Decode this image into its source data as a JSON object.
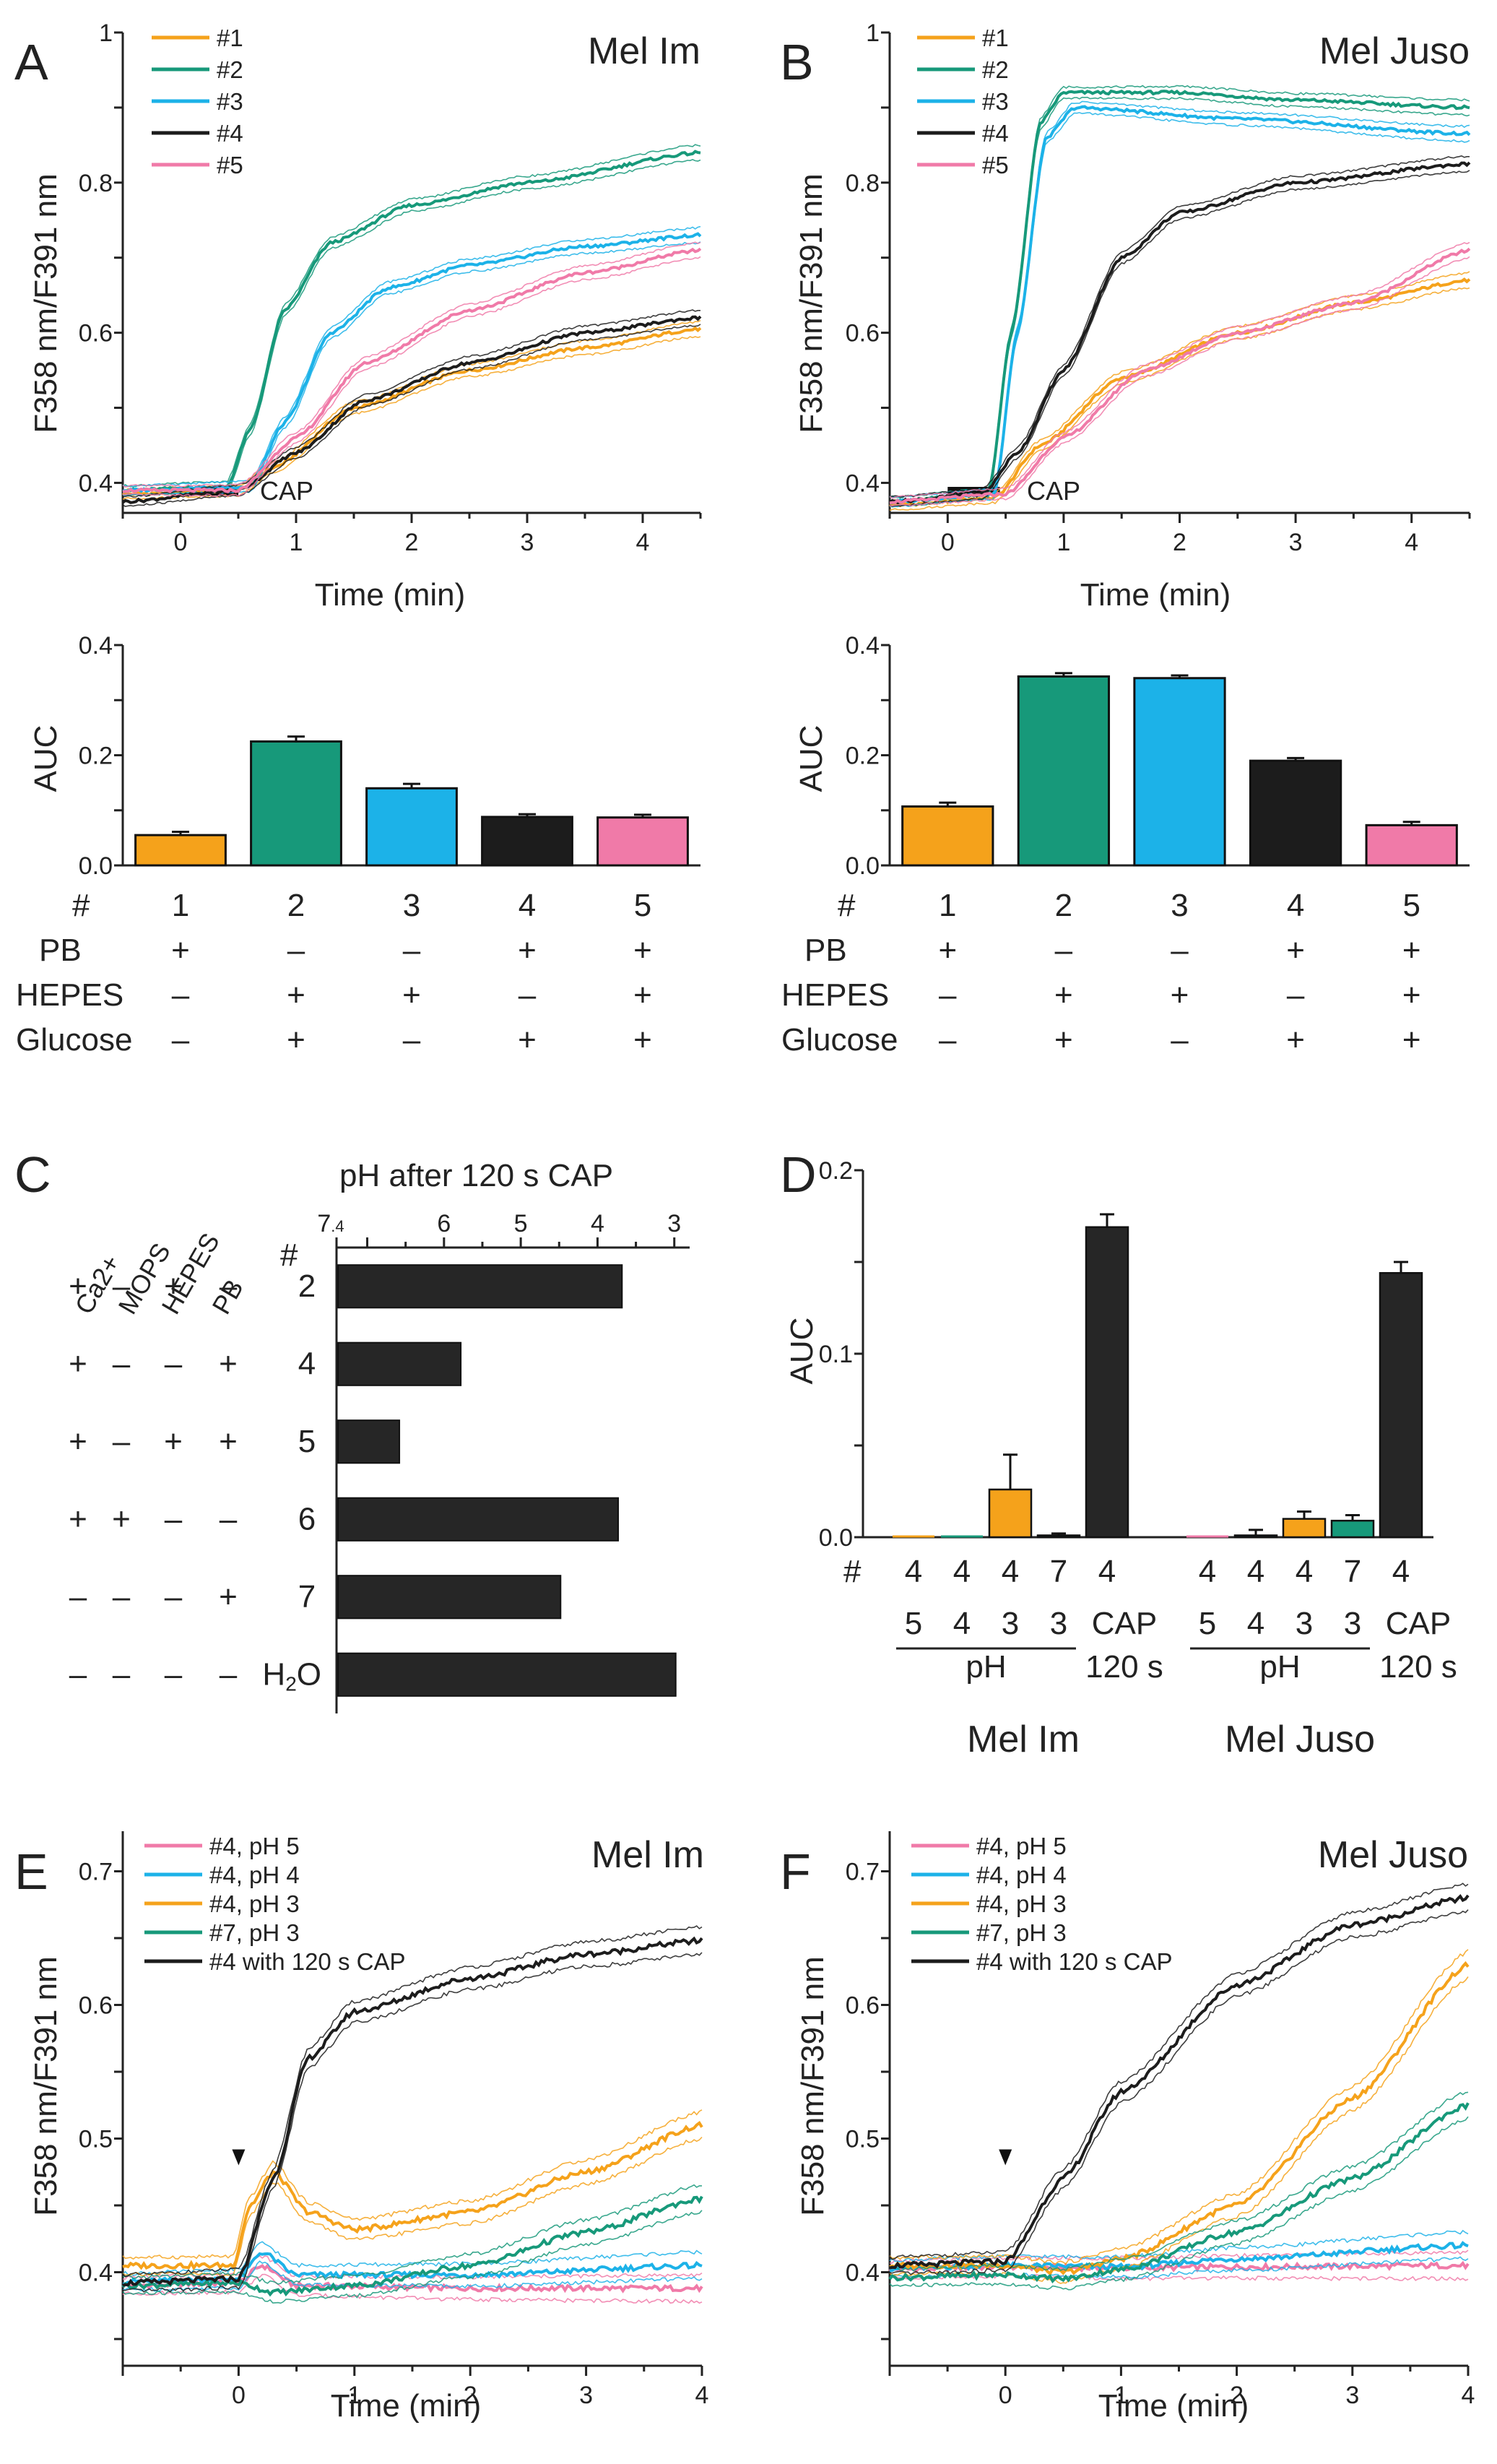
{
  "colors": {
    "c1": "#f5a21b",
    "c2": "#17997a",
    "c3": "#1cb2e8",
    "c4": "#1c1c1c",
    "c5": "#f07aa8",
    "bar_dark": "#262626"
  },
  "panelA": {
    "letter": "A",
    "cell": "Mel Im",
    "ylabel": "F358 nm/F391 nm",
    "xlabel": "Time (min)",
    "stim": "CAP",
    "legend": [
      "#1",
      "#2",
      "#3",
      "#4",
      "#5"
    ]
  },
  "panelB": {
    "letter": "B",
    "cell": "Mel Juso",
    "ylabel": "F358 nm/F391 nm",
    "xlabel": "Time (min)",
    "stim": "CAP",
    "legend": [
      "#1",
      "#2",
      "#3",
      "#4",
      "#5"
    ]
  },
  "auc": {
    "ylabel": "AUC",
    "row_labels": [
      "#",
      "PB",
      "HEPES",
      "Glucose"
    ],
    "columns": [
      {
        "num": "1",
        "pb": "+",
        "hepes": "–",
        "glucose": "–"
      },
      {
        "num": "2",
        "pb": "–",
        "hepes": "+",
        "glucose": "+"
      },
      {
        "num": "3",
        "pb": "–",
        "hepes": "+",
        "glucose": "–"
      },
      {
        "num": "4",
        "pb": "+",
        "hepes": "–",
        "glucose": "+"
      },
      {
        "num": "5",
        "pb": "+",
        "hepes": "+",
        "glucose": "+"
      }
    ]
  },
  "panelC": {
    "letter": "C",
    "title": "pH after 120 s CAP",
    "col_headers": [
      "Ca2+",
      "MOPS",
      "HEPES",
      "PB",
      "#"
    ],
    "rows": [
      {
        "signs": [
          "+",
          "–",
          "+",
          "–"
        ],
        "label": "2"
      },
      {
        "signs": [
          "+",
          "–",
          "–",
          "+"
        ],
        "label": "4"
      },
      {
        "signs": [
          "+",
          "–",
          "+",
          "+"
        ],
        "label": "5"
      },
      {
        "signs": [
          "+",
          "+",
          "–",
          "–"
        ],
        "label": "6"
      },
      {
        "signs": [
          "–",
          "–",
          "–",
          "+"
        ],
        "label": "7"
      },
      {
        "signs": [
          "–",
          "–",
          "–",
          "–"
        ],
        "label": "H2O"
      }
    ]
  },
  "panelD": {
    "letter": "D",
    "ylabel": "AUC",
    "hash": "#",
    "ph_label": "pH",
    "cap_label": "CAP",
    "cap_time": "120 s",
    "groups": [
      "Mel Im",
      "Mel Juso"
    ],
    "cols": [
      {
        "top": "4",
        "bottom": "5"
      },
      {
        "top": "4",
        "bottom": "4"
      },
      {
        "top": "4",
        "bottom": "3"
      },
      {
        "top": "7",
        "bottom": "3"
      },
      {
        "top": "4",
        "bottom": "CAP"
      }
    ]
  },
  "panelE": {
    "letter": "E",
    "cell": "Mel Im",
    "ylabel": "F358 nm/F391 nm",
    "xlabel": "Time (min)",
    "legend": [
      "#4, pH 5",
      "#4, pH 4",
      "#4, pH 3",
      "#7, pH 3",
      "#4 with 120 s CAP"
    ]
  },
  "panelF": {
    "letter": "F",
    "cell": "Mel Juso",
    "ylabel": "F358 nm/F391 nm",
    "xlabel": "Time (min)",
    "legend": [
      "#4, pH 5",
      "#4, pH 4",
      "#4, pH 3",
      "#7, pH 3",
      "#4 with 120 s CAP"
    ]
  },
  "chart_data": [
    {
      "id": "A",
      "type": "line",
      "title": "Mel Im",
      "xlabel": "Time (min)",
      "ylabel": "F358 nm/F391 nm",
      "xlim": [
        -0.5,
        4.5
      ],
      "ylim": [
        0.36,
        1.0
      ],
      "xticks": [
        0,
        1,
        2,
        3,
        4
      ],
      "yticks": [
        0.4,
        0.6,
        0.8,
        1
      ],
      "stimulus": {
        "label": "CAP",
        "x": [
          0,
          0.5
        ]
      },
      "series": [
        {
          "name": "#1",
          "color": "#f5a21b",
          "points": [
            [
              -0.5,
              0.385
            ],
            [
              0.5,
              0.39
            ],
            [
              0.8,
              0.42
            ],
            [
              1.5,
              0.5
            ],
            [
              2.5,
              0.55
            ],
            [
              3.5,
              0.58
            ],
            [
              4.5,
              0.605
            ]
          ]
        },
        {
          "name": "#2",
          "color": "#17997a",
          "points": [
            [
              -0.5,
              0.39
            ],
            [
              0.4,
              0.395
            ],
            [
              0.6,
              0.47
            ],
            [
              0.9,
              0.63
            ],
            [
              1.3,
              0.72
            ],
            [
              2,
              0.77
            ],
            [
              3,
              0.8
            ],
            [
              4.5,
              0.84
            ]
          ]
        },
        {
          "name": "#3",
          "color": "#1cb2e8",
          "points": [
            [
              -0.5,
              0.39
            ],
            [
              0.6,
              0.395
            ],
            [
              0.9,
              0.48
            ],
            [
              1.3,
              0.6
            ],
            [
              1.8,
              0.66
            ],
            [
              2.5,
              0.69
            ],
            [
              3.5,
              0.715
            ],
            [
              4.5,
              0.73
            ]
          ]
        },
        {
          "name": "#4",
          "color": "#1c1c1c",
          "points": [
            [
              -0.5,
              0.375
            ],
            [
              0.5,
              0.39
            ],
            [
              1,
              0.44
            ],
            [
              1.6,
              0.51
            ],
            [
              2.5,
              0.56
            ],
            [
              3.5,
              0.6
            ],
            [
              4.5,
              0.62
            ]
          ]
        },
        {
          "name": "#5",
          "color": "#f07aa8",
          "points": [
            [
              -0.5,
              0.39
            ],
            [
              0.5,
              0.39
            ],
            [
              1,
              0.46
            ],
            [
              1.6,
              0.56
            ],
            [
              2.5,
              0.63
            ],
            [
              3.5,
              0.68
            ],
            [
              4.5,
              0.71
            ]
          ]
        }
      ]
    },
    {
      "id": "B",
      "type": "line",
      "title": "Mel Juso",
      "xlabel": "Time (min)",
      "ylabel": "F358 nm/F391 nm",
      "xlim": [
        -0.5,
        4.5
      ],
      "ylim": [
        0.36,
        1.0
      ],
      "xticks": [
        0,
        1,
        2,
        3,
        4
      ],
      "yticks": [
        0.4,
        0.6,
        0.8,
        1
      ],
      "stimulus": {
        "label": "CAP",
        "x": [
          0,
          0.45
        ]
      },
      "series": [
        {
          "name": "#1",
          "color": "#f5a21b",
          "points": [
            [
              -0.5,
              0.37
            ],
            [
              0.4,
              0.38
            ],
            [
              0.8,
              0.45
            ],
            [
              1.5,
              0.54
            ],
            [
              2.5,
              0.6
            ],
            [
              3.5,
              0.64
            ],
            [
              4.5,
              0.67
            ]
          ]
        },
        {
          "name": "#2",
          "color": "#17997a",
          "points": [
            [
              -0.5,
              0.375
            ],
            [
              0.35,
              0.385
            ],
            [
              0.55,
              0.6
            ],
            [
              0.8,
              0.88
            ],
            [
              1,
              0.92
            ],
            [
              2,
              0.92
            ],
            [
              3,
              0.91
            ],
            [
              4.5,
              0.9
            ]
          ]
        },
        {
          "name": "#3",
          "color": "#1cb2e8",
          "points": [
            [
              -0.5,
              0.375
            ],
            [
              0.4,
              0.385
            ],
            [
              0.6,
              0.6
            ],
            [
              0.85,
              0.86
            ],
            [
              1.1,
              0.9
            ],
            [
              2.5,
              0.885
            ],
            [
              4.5,
              0.865
            ]
          ]
        },
        {
          "name": "#4",
          "color": "#1c1c1c",
          "points": [
            [
              -0.5,
              0.375
            ],
            [
              0.3,
              0.385
            ],
            [
              0.6,
              0.44
            ],
            [
              1,
              0.55
            ],
            [
              1.5,
              0.7
            ],
            [
              2,
              0.76
            ],
            [
              3,
              0.8
            ],
            [
              4.5,
              0.825
            ]
          ]
        },
        {
          "name": "#5",
          "color": "#f07aa8",
          "points": [
            [
              -0.5,
              0.375
            ],
            [
              0.5,
              0.385
            ],
            [
              1,
              0.46
            ],
            [
              1.7,
              0.55
            ],
            [
              2.5,
              0.6
            ],
            [
              3.5,
              0.64
            ],
            [
              4.5,
              0.71
            ]
          ]
        }
      ]
    },
    {
      "id": "A-AUC",
      "type": "bar",
      "ylabel": "AUC",
      "ylim": [
        0,
        0.4
      ],
      "yticks": [
        0.0,
        0.2,
        0.4
      ],
      "categories": [
        "1",
        "2",
        "3",
        "4",
        "5"
      ],
      "values": [
        0.055,
        0.225,
        0.14,
        0.088,
        0.087
      ],
      "errors": [
        0.006,
        0.009,
        0.008,
        0.005,
        0.005
      ],
      "colors": [
        "#f5a21b",
        "#17997a",
        "#1cb2e8",
        "#1c1c1c",
        "#f07aa8"
      ]
    },
    {
      "id": "B-AUC",
      "type": "bar",
      "ylabel": "AUC",
      "ylim": [
        0,
        0.4
      ],
      "yticks": [
        0.0,
        0.2,
        0.4
      ],
      "categories": [
        "1",
        "2",
        "3",
        "4",
        "5"
      ],
      "values": [
        0.107,
        0.343,
        0.34,
        0.19,
        0.073
      ],
      "errors": [
        0.007,
        0.006,
        0.005,
        0.005,
        0.006
      ],
      "colors": [
        "#f5a21b",
        "#17997a",
        "#1cb2e8",
        "#1c1c1c",
        "#f07aa8"
      ]
    },
    {
      "id": "C",
      "type": "bar",
      "orientation": "horizontal",
      "title": "pH after 120 s CAP",
      "xlim": [
        7.4,
        2.8
      ],
      "xticks": [
        7.4,
        6,
        5,
        4,
        3
      ],
      "categories": [
        "2",
        "4",
        "5",
        "6",
        "7",
        "H2O"
      ],
      "values": [
        3.7,
        5.8,
        6.6,
        3.75,
        4.5,
        3.0
      ]
    },
    {
      "id": "D",
      "type": "bar",
      "ylabel": "AUC",
      "ylim": [
        0,
        0.2
      ],
      "yticks": [
        0.0,
        0.1,
        0.2
      ],
      "groups": [
        {
          "name": "Mel Im",
          "values": [
            0.0,
            0.0,
            0.026,
            0.001,
            0.169
          ],
          "errors": [
            0,
            0,
            0.019,
            0.001,
            0.007
          ],
          "colors": [
            "#f5a21b",
            "#17997a",
            "#f5a21b",
            "#17997a",
            "#262626"
          ]
        },
        {
          "name": "Mel Juso",
          "values": [
            0.0,
            0.001,
            0.01,
            0.009,
            0.144
          ],
          "errors": [
            0,
            0.003,
            0.004,
            0.003,
            0.006
          ],
          "colors": [
            "#f07aa8",
            "#1cb2e8",
            "#f5a21b",
            "#17997a",
            "#262626"
          ]
        }
      ]
    },
    {
      "id": "E",
      "type": "line",
      "title": "Mel Im",
      "xlabel": "Time (min)",
      "ylabel": "F358 nm/F391 nm",
      "xlim": [
        -1,
        4
      ],
      "ylim": [
        0.33,
        0.73
      ],
      "xticks": [
        0,
        1,
        2,
        3,
        4
      ],
      "yticks": [
        0.4,
        0.5,
        0.6,
        0.7
      ],
      "arrow_x": 0,
      "series": [
        {
          "name": "#4, pH 5",
          "color": "#f07aa8",
          "points": [
            [
              -1,
              0.39
            ],
            [
              0,
              0.392
            ],
            [
              0.2,
              0.405
            ],
            [
              0.5,
              0.39
            ],
            [
              2,
              0.388
            ],
            [
              4,
              0.388
            ]
          ]
        },
        {
          "name": "#4, pH 4",
          "color": "#1cb2e8",
          "points": [
            [
              -1,
              0.393
            ],
            [
              0,
              0.395
            ],
            [
              0.2,
              0.415
            ],
            [
              0.5,
              0.398
            ],
            [
              2,
              0.398
            ],
            [
              4,
              0.405
            ]
          ]
        },
        {
          "name": "#4, pH 3",
          "color": "#f5a21b",
          "points": [
            [
              -1,
              0.405
            ],
            [
              -0.05,
              0.405
            ],
            [
              0.1,
              0.45
            ],
            [
              0.3,
              0.475
            ],
            [
              0.6,
              0.445
            ],
            [
              1,
              0.432
            ],
            [
              2,
              0.445
            ],
            [
              3,
              0.475
            ],
            [
              4,
              0.51
            ]
          ]
        },
        {
          "name": "#7, pH 3",
          "color": "#17997a",
          "points": [
            [
              -1,
              0.39
            ],
            [
              0,
              0.392
            ],
            [
              0.3,
              0.385
            ],
            [
              1,
              0.39
            ],
            [
              2,
              0.405
            ],
            [
              3,
              0.43
            ],
            [
              4,
              0.455
            ]
          ]
        },
        {
          "name": "#4 with 120 s CAP",
          "color": "#1c1c1c",
          "points": [
            [
              -1,
              0.392
            ],
            [
              0,
              0.395
            ],
            [
              0.3,
              0.47
            ],
            [
              0.6,
              0.56
            ],
            [
              1,
              0.595
            ],
            [
              2,
              0.62
            ],
            [
              3,
              0.638
            ],
            [
              4,
              0.648
            ]
          ]
        }
      ]
    },
    {
      "id": "F",
      "type": "line",
      "title": "Mel Juso",
      "xlabel": "Time (min)",
      "ylabel": "F358 nm/F391 nm",
      "xlim": [
        -1,
        4
      ],
      "ylim": [
        0.33,
        0.73
      ],
      "xticks": [
        0,
        1,
        2,
        3,
        4
      ],
      "yticks": [
        0.4,
        0.5,
        0.6,
        0.7
      ],
      "arrow_x": 0,
      "series": [
        {
          "name": "#4, pH 5",
          "color": "#f07aa8",
          "points": [
            [
              -1,
              0.402
            ],
            [
              0,
              0.404
            ],
            [
              1,
              0.403
            ],
            [
              2,
              0.404
            ],
            [
              4,
              0.405
            ]
          ]
        },
        {
          "name": "#4, pH 4",
          "color": "#1cb2e8",
          "points": [
            [
              -1,
              0.403
            ],
            [
              0,
              0.405
            ],
            [
              1,
              0.404
            ],
            [
              2,
              0.41
            ],
            [
              4,
              0.42
            ]
          ]
        },
        {
          "name": "#4, pH 3",
          "color": "#f5a21b",
          "points": [
            [
              -1,
              0.405
            ],
            [
              0,
              0.405
            ],
            [
              0.5,
              0.4
            ],
            [
              1,
              0.41
            ],
            [
              2,
              0.45
            ],
            [
              3,
              0.53
            ],
            [
              4,
              0.63
            ]
          ]
        },
        {
          "name": "#7, pH 3",
          "color": "#17997a",
          "points": [
            [
              -1,
              0.396
            ],
            [
              0,
              0.398
            ],
            [
              0.5,
              0.395
            ],
            [
              1,
              0.402
            ],
            [
              2,
              0.43
            ],
            [
              3,
              0.47
            ],
            [
              4,
              0.525
            ]
          ]
        },
        {
          "name": "#4 with 120 s CAP",
          "color": "#1c1c1c",
          "points": [
            [
              -1,
              0.405
            ],
            [
              0,
              0.408
            ],
            [
              0.5,
              0.47
            ],
            [
              1,
              0.535
            ],
            [
              2,
              0.615
            ],
            [
              3,
              0.66
            ],
            [
              4,
              0.68
            ]
          ]
        }
      ]
    }
  ]
}
